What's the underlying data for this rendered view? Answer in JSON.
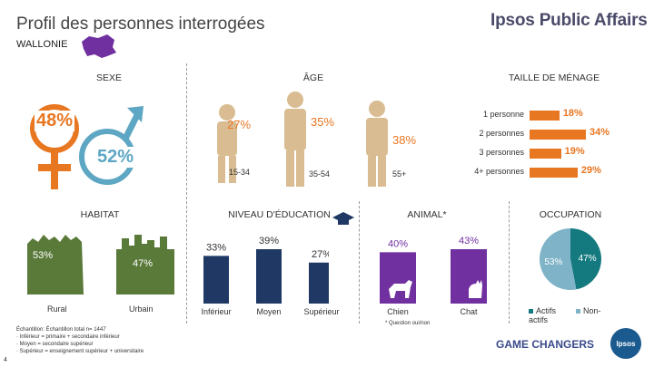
{
  "header": {
    "title": "Profil des personnes interrogées",
    "brand": "Ipsos Public Affairs",
    "region": "WALLONIE"
  },
  "colors": {
    "orange": "#e87722",
    "blue": "#5ea7c4",
    "navy": "#1f3864",
    "purple": "#7030a0",
    "teal": "#157a7f",
    "light_blue": "#7fb3c8",
    "green": "#5a7a3a"
  },
  "sexe": {
    "heading": "SEXE",
    "female_pct": "48%",
    "male_pct": "52%"
  },
  "age": {
    "heading": "ÂGE",
    "groups": [
      {
        "pct": "27%",
        "label": "15-34"
      },
      {
        "pct": "35%",
        "label": "35-54"
      },
      {
        "pct": "38%",
        "label": "55+"
      }
    ]
  },
  "menage": {
    "heading": "TAILLE DE MÉNAGE"
  },
  "habitat": {
    "heading": "HABITAT",
    "rural_pct": "53%",
    "urbain_pct": "47%",
    "rural_label": "Rural",
    "urbain_label": "Urbain"
  },
  "education": {
    "heading": "NIVEAU D'ÉDUCATION"
  },
  "animal": {
    "heading": "ANIMAL*",
    "note": "* Question oui/non"
  },
  "occupation": {
    "heading": "OCCUPATION"
  },
  "footer": {
    "sample": "Échantillon:            Échantillon total n= 1447",
    "lines": [
      "Inférieur = primaire + secondaire inférieur",
      "Moyen = secondaire supérieur",
      "Supérieur = enseignement supérieur + universitaire"
    ],
    "page": "4",
    "game": "GAME CHANGERS",
    "logo": "Ipsos"
  },
  "chart_data": [
    {
      "type": "bar",
      "title": "TAILLE DE MÉNAGE",
      "orientation": "horizontal",
      "categories": [
        "1 personne",
        "2 personnes",
        "3 personnes",
        "4+ personnes"
      ],
      "values": [
        18,
        34,
        19,
        29
      ],
      "labels": [
        "18%",
        "34%",
        "19%",
        "29%"
      ],
      "xlim": [
        0,
        34
      ]
    },
    {
      "type": "bar",
      "title": "NIVEAU D'ÉDUCATION",
      "categories": [
        "Inférieur",
        "Moyen",
        "Supérieur"
      ],
      "values": [
        33,
        39,
        27
      ],
      "labels": [
        "33%",
        "39%",
        "27%"
      ],
      "ylim": [
        0,
        39
      ]
    },
    {
      "type": "bar",
      "title": "ANIMAL*",
      "categories": [
        "Chien",
        "Chat"
      ],
      "values": [
        40,
        43
      ],
      "labels": [
        "40%",
        "43%"
      ],
      "ylim": [
        0,
        43
      ]
    },
    {
      "type": "pie",
      "title": "OCCUPATION",
      "categories": [
        "Actifs",
        "Non-actifs"
      ],
      "values": [
        47,
        53
      ],
      "labels": [
        "47%",
        "53%"
      ]
    }
  ]
}
